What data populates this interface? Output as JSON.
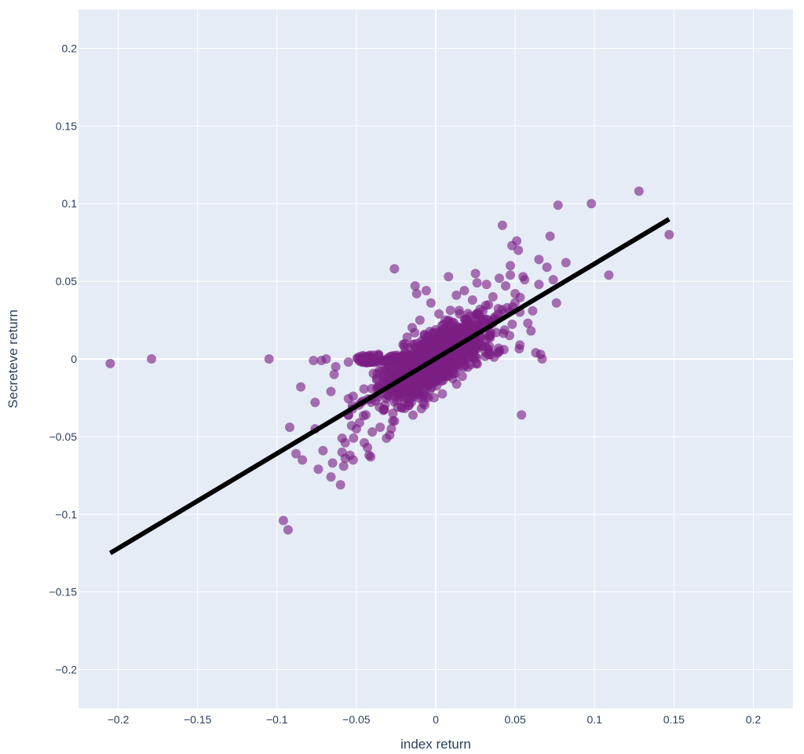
{
  "chart_data": {
    "type": "scatter",
    "title": "",
    "xlabel": "index return",
    "ylabel": "Secreteve return",
    "xlim": [
      -0.225,
      0.225
    ],
    "ylim": [
      -0.225,
      0.225
    ],
    "grid": true,
    "x_ticks": [
      {
        "value": -0.2,
        "label": "−0.2"
      },
      {
        "value": -0.15,
        "label": "−0.15"
      },
      {
        "value": -0.1,
        "label": "−0.1"
      },
      {
        "value": -0.05,
        "label": "−0.05"
      },
      {
        "value": 0,
        "label": "0"
      },
      {
        "value": 0.05,
        "label": "0.05"
      },
      {
        "value": 0.1,
        "label": "0.1"
      },
      {
        "value": 0.15,
        "label": "0.15"
      },
      {
        "value": 0.2,
        "label": "0.2"
      }
    ],
    "y_ticks": [
      {
        "value": 0.2,
        "label": "0.2"
      },
      {
        "value": 0.15,
        "label": "0.15"
      },
      {
        "value": 0.1,
        "label": "0.1"
      },
      {
        "value": 0.05,
        "label": "0.05"
      },
      {
        "value": 0,
        "label": "0"
      },
      {
        "value": -0.05,
        "label": "−0.05"
      },
      {
        "value": -0.1,
        "label": "−0.1"
      },
      {
        "value": -0.15,
        "label": "−0.15"
      },
      {
        "value": -0.2,
        "label": "−0.2"
      }
    ],
    "colors": {
      "background": "#e5ecf6",
      "grid": "#ffffff",
      "marker": "#7b1f84",
      "line": "#000000"
    },
    "series": [
      {
        "type": "scatter",
        "x": [
          -0.205,
          -0.179,
          -0.105,
          -0.096,
          -0.093,
          -0.092,
          -0.088,
          -0.085,
          -0.084,
          -0.077,
          -0.076,
          -0.076,
          -0.074,
          -0.072,
          -0.071,
          -0.069,
          -0.066,
          -0.066,
          -0.065,
          -0.064,
          -0.063,
          -0.06,
          -0.059,
          -0.059,
          -0.058,
          -0.057,
          -0.057,
          -0.055,
          -0.054,
          -0.053,
          -0.052,
          -0.052,
          -0.05,
          -0.048,
          -0.047,
          -0.045,
          -0.044,
          -0.043,
          -0.042,
          -0.041,
          -0.04,
          -0.038,
          -0.036,
          -0.035,
          -0.033,
          -0.031,
          -0.03,
          -0.029,
          -0.028,
          -0.027,
          -0.026,
          -0.026,
          -0.024,
          -0.022,
          -0.019,
          -0.018,
          -0.017,
          -0.015,
          -0.013,
          -0.012,
          -0.01,
          -0.009,
          -0.009,
          -0.006,
          -0.004,
          -0.003,
          -0.001,
          0.002,
          0.005,
          0.008,
          0.01,
          0.013,
          0.015,
          0.018,
          0.022,
          0.025,
          0.026,
          0.028,
          0.03,
          0.032,
          0.034,
          0.036,
          0.038,
          0.04,
          0.042,
          0.044,
          0.045,
          0.047,
          0.047,
          0.048,
          0.05,
          0.051,
          0.052,
          0.053,
          0.054,
          0.055,
          0.056,
          0.058,
          0.06,
          0.061,
          0.063,
          0.065,
          0.065,
          0.066,
          0.067,
          0.07,
          0.072,
          0.074,
          0.076,
          0.077,
          0.082,
          0.098,
          0.109,
          0.128,
          0.147
        ],
        "y": [
          -0.003,
          0.0,
          0.0,
          -0.104,
          -0.11,
          -0.044,
          -0.061,
          -0.018,
          -0.065,
          -0.001,
          -0.028,
          -0.045,
          -0.071,
          -0.001,
          -0.059,
          0.0,
          -0.021,
          -0.076,
          -0.067,
          -0.01,
          -0.005,
          -0.081,
          -0.051,
          -0.06,
          -0.069,
          -0.054,
          -0.064,
          -0.002,
          -0.062,
          -0.043,
          -0.065,
          -0.024,
          -0.045,
          -0.041,
          -0.028,
          -0.054,
          -0.036,
          -0.057,
          -0.062,
          -0.063,
          -0.047,
          -0.027,
          0.003,
          -0.044,
          -0.013,
          -0.051,
          -0.024,
          -0.049,
          -0.045,
          -0.035,
          -0.04,
          0.058,
          -0.031,
          -0.01,
          -0.005,
          0.014,
          -0.028,
          -0.021,
          0.047,
          0.042,
          0.025,
          -0.007,
          -0.032,
          0.044,
          0.014,
          0.036,
          -0.025,
          0.029,
          0.019,
          0.053,
          0.005,
          0.041,
          0.029,
          0.044,
          0.01,
          0.055,
          0.049,
          0.032,
          0.021,
          0.048,
          0.015,
          0.04,
          0.026,
          0.052,
          0.086,
          0.047,
          0.033,
          0.054,
          0.06,
          0.073,
          0.042,
          0.076,
          0.07,
          0.009,
          -0.036,
          0.053,
          0.051,
          0.023,
          0.018,
          0.031,
          0.004,
          0.064,
          0.048,
          0.003,
          0.0,
          0.059,
          0.079,
          0.051,
          0.036,
          0.099,
          0.062,
          0.1,
          0.054,
          0.108,
          0.08
        ]
      },
      {
        "type": "line",
        "x": [
          -0.205,
          0.147
        ],
        "y": [
          -0.125,
          0.09
        ]
      }
    ]
  }
}
